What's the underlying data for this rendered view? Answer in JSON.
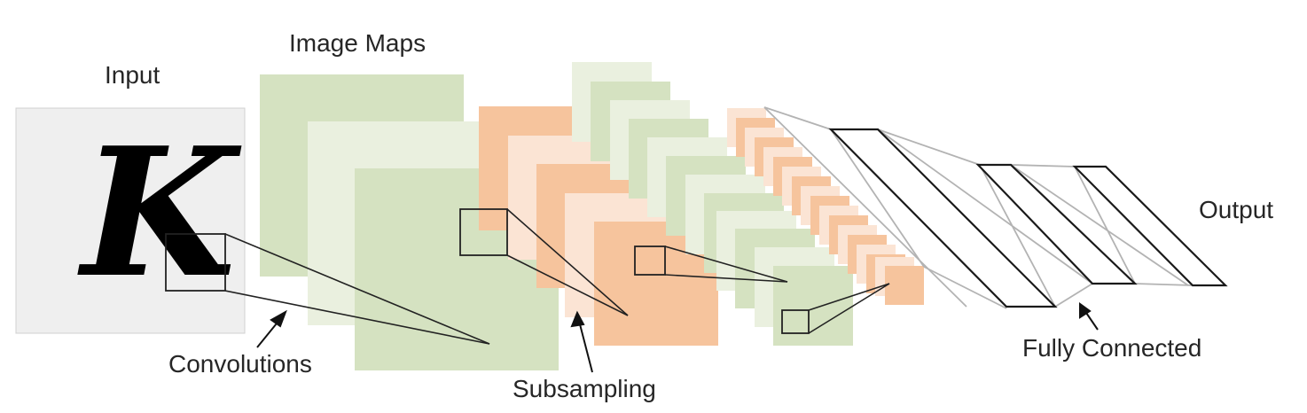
{
  "labels": {
    "input": "Input",
    "image_maps": "Image Maps",
    "output": "Output",
    "convolutions": "Convolutions",
    "subsampling": "Subsampling",
    "fully_connected": "Fully Connected"
  },
  "input_glyph": "K",
  "colors": {
    "input_bg": "#efefef",
    "green_dark": "#d5e2c1",
    "green_light": "#eaf0df",
    "orange_dark": "#f6c49d",
    "orange_light": "#fbe4d4",
    "stroke": "#222222",
    "fc_stroke": "#b3b3b3"
  }
}
